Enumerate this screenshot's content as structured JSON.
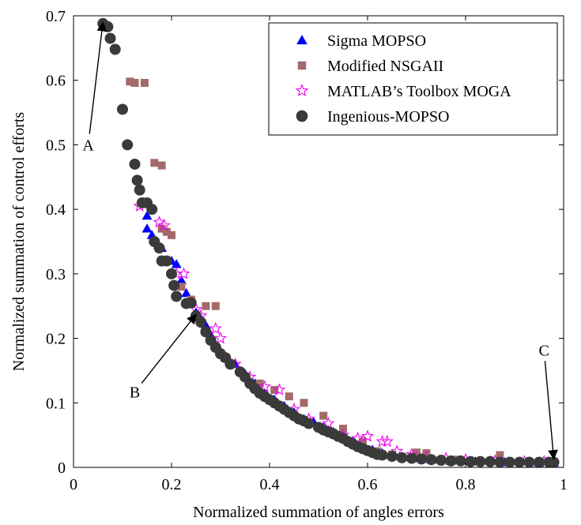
{
  "chart_data": {
    "type": "scatter",
    "xlabel": "Normalized summation of angles errors",
    "ylabel": "Normalized summation of control efforts",
    "xlim": [
      0,
      1
    ],
    "ylim": [
      0,
      0.7
    ],
    "xticks": [
      0,
      0.2,
      0.4,
      0.6,
      0.8,
      1
    ],
    "xtick_labels": [
      "0",
      "0.2",
      "0.4",
      "0.6",
      "0.8",
      "1"
    ],
    "yticks": [
      0,
      0.1,
      0.2,
      0.3,
      0.4,
      0.5,
      0.6,
      0.7
    ],
    "ytick_labels": [
      "0",
      "0.1",
      "0.2",
      "0.3",
      "0.4",
      "0.5",
      "0.6",
      "0.7"
    ],
    "grid": false,
    "legend_position": "top-right",
    "series": [
      {
        "name": "Sigma MOPSO",
        "marker": "triangle",
        "color": "#0000ff",
        "points": [
          [
            0.15,
            0.39
          ],
          [
            0.15,
            0.37
          ],
          [
            0.16,
            0.36
          ],
          [
            0.18,
            0.34
          ],
          [
            0.2,
            0.32
          ],
          [
            0.21,
            0.315
          ],
          [
            0.22,
            0.29
          ],
          [
            0.23,
            0.27
          ],
          [
            0.25,
            0.24
          ],
          [
            0.26,
            0.23
          ],
          [
            0.27,
            0.22
          ],
          [
            0.28,
            0.205
          ],
          [
            0.29,
            0.19
          ],
          [
            0.3,
            0.18
          ],
          [
            0.31,
            0.17
          ],
          [
            0.33,
            0.16
          ],
          [
            0.35,
            0.145
          ],
          [
            0.37,
            0.13
          ],
          [
            0.38,
            0.12
          ],
          [
            0.39,
            0.115
          ],
          [
            0.41,
            0.105
          ],
          [
            0.43,
            0.095
          ],
          [
            0.45,
            0.085
          ],
          [
            0.47,
            0.075
          ],
          [
            0.49,
            0.07
          ],
          [
            0.51,
            0.062
          ],
          [
            0.53,
            0.055
          ],
          [
            0.55,
            0.048
          ],
          [
            0.57,
            0.04
          ],
          [
            0.59,
            0.033
          ],
          [
            0.61,
            0.027
          ],
          [
            0.63,
            0.022
          ],
          [
            0.65,
            0.018
          ],
          [
            0.67,
            0.016
          ],
          [
            0.7,
            0.014
          ],
          [
            0.73,
            0.012
          ],
          [
            0.77,
            0.01
          ],
          [
            0.82,
            0.009
          ],
          [
            0.88,
            0.008
          ],
          [
            0.95,
            0.007
          ],
          [
            0.98,
            0.007
          ]
        ]
      },
      {
        "name": "Modified NSGAII",
        "marker": "square",
        "color": "#a46a6a",
        "points": [
          [
            0.115,
            0.598
          ],
          [
            0.125,
            0.596
          ],
          [
            0.145,
            0.596
          ],
          [
            0.165,
            0.472
          ],
          [
            0.18,
            0.468
          ],
          [
            0.18,
            0.37
          ],
          [
            0.19,
            0.365
          ],
          [
            0.2,
            0.36
          ],
          [
            0.22,
            0.28
          ],
          [
            0.24,
            0.26
          ],
          [
            0.27,
            0.25
          ],
          [
            0.29,
            0.25
          ],
          [
            0.32,
            0.16
          ],
          [
            0.38,
            0.13
          ],
          [
            0.41,
            0.12
          ],
          [
            0.44,
            0.11
          ],
          [
            0.47,
            0.1
          ],
          [
            0.51,
            0.08
          ],
          [
            0.55,
            0.06
          ],
          [
            0.59,
            0.04
          ],
          [
            0.62,
            0.025
          ],
          [
            0.65,
            0.02
          ],
          [
            0.7,
            0.023
          ],
          [
            0.72,
            0.022
          ],
          [
            0.78,
            0.012
          ],
          [
            0.87,
            0.019
          ],
          [
            0.95,
            0.008
          ]
        ]
      },
      {
        "name": "MATLAB’s Toolbox MOGA",
        "marker": "star",
        "color": "#ee00ee",
        "points": [
          [
            0.135,
            0.405
          ],
          [
            0.175,
            0.38
          ],
          [
            0.185,
            0.375
          ],
          [
            0.21,
            0.3
          ],
          [
            0.225,
            0.3
          ],
          [
            0.25,
            0.245
          ],
          [
            0.26,
            0.235
          ],
          [
            0.29,
            0.215
          ],
          [
            0.3,
            0.2
          ],
          [
            0.33,
            0.16
          ],
          [
            0.36,
            0.14
          ],
          [
            0.39,
            0.125
          ],
          [
            0.42,
            0.12
          ],
          [
            0.45,
            0.09
          ],
          [
            0.48,
            0.075
          ],
          [
            0.52,
            0.068
          ],
          [
            0.55,
            0.05
          ],
          [
            0.58,
            0.045
          ],
          [
            0.6,
            0.048
          ],
          [
            0.63,
            0.04
          ],
          [
            0.64,
            0.04
          ],
          [
            0.66,
            0.025
          ],
          [
            0.69,
            0.02
          ],
          [
            0.72,
            0.016
          ],
          [
            0.76,
            0.014
          ],
          [
            0.8,
            0.012
          ],
          [
            0.86,
            0.01
          ],
          [
            0.92,
            0.009
          ],
          [
            0.96,
            0.009
          ]
        ]
      },
      {
        "name": "Ingenious-MOPSO",
        "marker": "circle",
        "color": "#3a3a3a",
        "points": [
          [
            0.06,
            0.688
          ],
          [
            0.07,
            0.683
          ],
          [
            0.075,
            0.665
          ],
          [
            0.085,
            0.648
          ],
          [
            0.1,
            0.555
          ],
          [
            0.11,
            0.5
          ],
          [
            0.125,
            0.47
          ],
          [
            0.13,
            0.445
          ],
          [
            0.135,
            0.43
          ],
          [
            0.14,
            0.41
          ],
          [
            0.15,
            0.41
          ],
          [
            0.16,
            0.4
          ],
          [
            0.165,
            0.35
          ],
          [
            0.175,
            0.34
          ],
          [
            0.18,
            0.32
          ],
          [
            0.19,
            0.32
          ],
          [
            0.2,
            0.3
          ],
          [
            0.205,
            0.282
          ],
          [
            0.21,
            0.265
          ],
          [
            0.23,
            0.254
          ],
          [
            0.24,
            0.255
          ],
          [
            0.25,
            0.235
          ],
          [
            0.26,
            0.225
          ],
          [
            0.27,
            0.21
          ],
          [
            0.28,
            0.197
          ],
          [
            0.29,
            0.186
          ],
          [
            0.3,
            0.176
          ],
          [
            0.31,
            0.17
          ],
          [
            0.32,
            0.16
          ],
          [
            0.34,
            0.148
          ],
          [
            0.35,
            0.14
          ],
          [
            0.36,
            0.13
          ],
          [
            0.37,
            0.122
          ],
          [
            0.38,
            0.115
          ],
          [
            0.39,
            0.11
          ],
          [
            0.4,
            0.105
          ],
          [
            0.41,
            0.1
          ],
          [
            0.42,
            0.095
          ],
          [
            0.43,
            0.09
          ],
          [
            0.44,
            0.085
          ],
          [
            0.45,
            0.08
          ],
          [
            0.46,
            0.075
          ],
          [
            0.47,
            0.072
          ],
          [
            0.48,
            0.068
          ],
          [
            0.5,
            0.062
          ],
          [
            0.51,
            0.058
          ],
          [
            0.52,
            0.055
          ],
          [
            0.53,
            0.052
          ],
          [
            0.54,
            0.048
          ],
          [
            0.55,
            0.045
          ],
          [
            0.56,
            0.04
          ],
          [
            0.57,
            0.036
          ],
          [
            0.58,
            0.032
          ],
          [
            0.59,
            0.029
          ],
          [
            0.6,
            0.026
          ],
          [
            0.61,
            0.023
          ],
          [
            0.62,
            0.02
          ],
          [
            0.63,
            0.019
          ],
          [
            0.65,
            0.017
          ],
          [
            0.67,
            0.015
          ],
          [
            0.69,
            0.014
          ],
          [
            0.71,
            0.013
          ],
          [
            0.73,
            0.012
          ],
          [
            0.75,
            0.011
          ],
          [
            0.77,
            0.01
          ],
          [
            0.79,
            0.01
          ],
          [
            0.81,
            0.009
          ],
          [
            0.83,
            0.009
          ],
          [
            0.85,
            0.009
          ],
          [
            0.87,
            0.008
          ],
          [
            0.89,
            0.008
          ],
          [
            0.91,
            0.008
          ],
          [
            0.93,
            0.008
          ],
          [
            0.95,
            0.008
          ],
          [
            0.97,
            0.008
          ],
          [
            0.98,
            0.008
          ]
        ]
      }
    ],
    "annotations": [
      {
        "text": "A",
        "target": [
          0.06,
          0.69
        ],
        "text_at": [
          0.03,
          0.5
        ]
      },
      {
        "text": "B",
        "target": [
          0.25,
          0.237
        ],
        "text_at": [
          0.125,
          0.117
        ]
      },
      {
        "text": "C",
        "target": [
          0.98,
          0.013
        ],
        "text_at": [
          0.96,
          0.182
        ]
      }
    ]
  }
}
